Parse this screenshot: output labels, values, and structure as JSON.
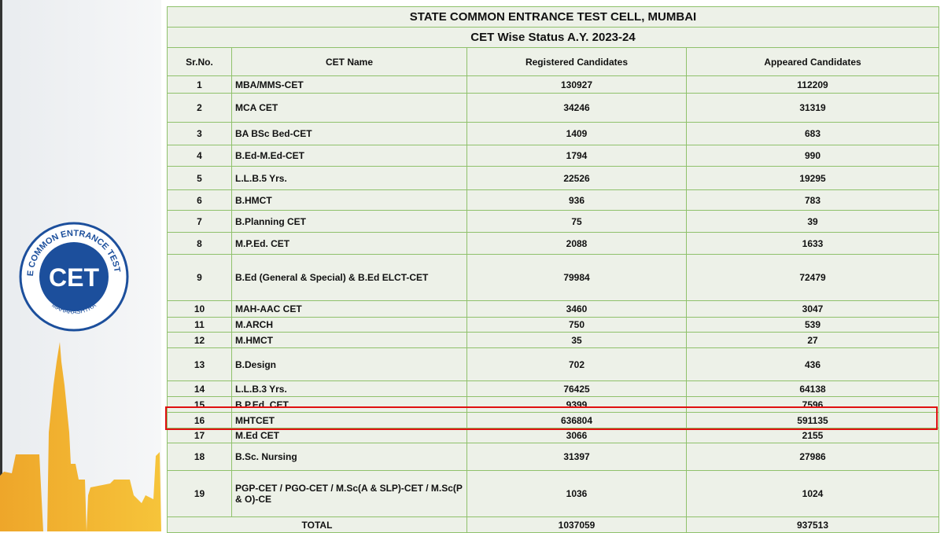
{
  "sidebar": {
    "logo_text": "STATE COMMON ENTRANCE TEST CELL",
    "logo_mark": "CET",
    "logo_region": "MAHARASHTRA",
    "brand_blue": "#1c4f9c",
    "skyline_color": "#f0b030"
  },
  "table": {
    "title": "STATE COMMON ENTRANCE TEST CELL, MUMBAI",
    "subtitle": "CET  Wise Status A.Y. 2023-24",
    "headers": [
      "Sr.No.",
      "CET Name",
      "Registered Candidates",
      "Appeared Candidates"
    ],
    "rows": [
      {
        "sr": "1",
        "name": "MBA/MMS-CET",
        "registered": "130927",
        "appeared": "112209"
      },
      {
        "sr": "2",
        "name": "MCA CET",
        "registered": "34246",
        "appeared": "31319"
      },
      {
        "sr": "3",
        "name": "BA BSc Bed-CET",
        "registered": "1409",
        "appeared": "683"
      },
      {
        "sr": "4",
        "name": "B.Ed-M.Ed-CET",
        "registered": "1794",
        "appeared": "990"
      },
      {
        "sr": "5",
        "name": "L.L.B.5 Yrs.",
        "registered": "22526",
        "appeared": "19295"
      },
      {
        "sr": "6",
        "name": "B.HMCT",
        "registered": "936",
        "appeared": "783"
      },
      {
        "sr": "7",
        "name": "B.Planning CET",
        "registered": "75",
        "appeared": "39"
      },
      {
        "sr": "8",
        "name": "M.P.Ed. CET",
        "registered": "2088",
        "appeared": "1633"
      },
      {
        "sr": "9",
        "name": "B.Ed (General & Special) & B.Ed ELCT-CET",
        "registered": "79984",
        "appeared": "72479"
      },
      {
        "sr": "10",
        "name": "MAH-AAC CET",
        "registered": "3460",
        "appeared": "3047"
      },
      {
        "sr": "11",
        "name": "M.ARCH",
        "registered": "750",
        "appeared": "539"
      },
      {
        "sr": "12",
        "name": "M.HMCT",
        "registered": "35",
        "appeared": "27"
      },
      {
        "sr": "13",
        "name": "B.Design",
        "registered": "702",
        "appeared": "436"
      },
      {
        "sr": "14",
        "name": "L.L.B.3 Yrs.",
        "registered": "76425",
        "appeared": "64138"
      },
      {
        "sr": "15",
        "name": "B.P.Ed. CET",
        "registered": "9399",
        "appeared": "7596"
      },
      {
        "sr": "16",
        "name": "MHTCET",
        "registered": "636804",
        "appeared": "591135"
      },
      {
        "sr": "17",
        "name": "M.Ed CET",
        "registered": "3066",
        "appeared": "2155"
      },
      {
        "sr": "18",
        "name": "B.Sc. Nursing",
        "registered": "31397",
        "appeared": "27986"
      },
      {
        "sr": "19",
        "name": "PGP-CET / PGO-CET / M.Sc(A & SLP)-CET / M.Sc(P & O)-CE",
        "registered": "1036",
        "appeared": "1024"
      }
    ],
    "total": {
      "label": "TOTAL",
      "registered": "1037059",
      "appeared": "937513"
    },
    "highlight_row": "16",
    "highlight_color": "#e01010"
  }
}
